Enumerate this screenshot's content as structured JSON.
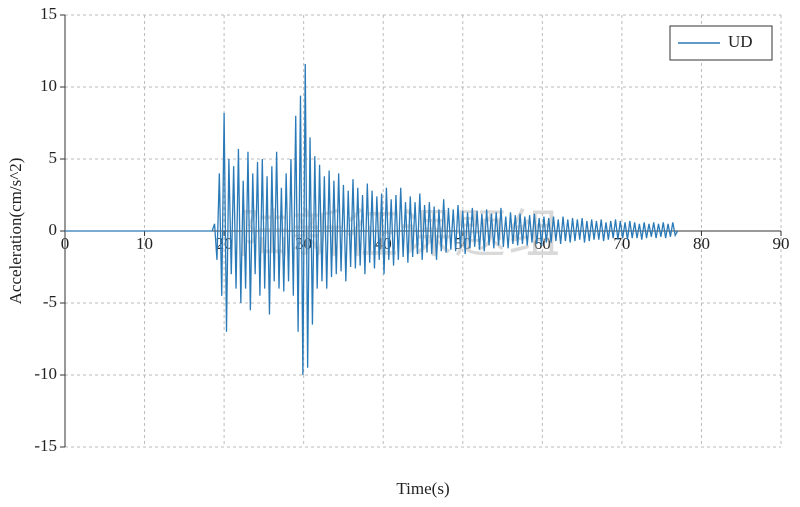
{
  "chart_data": {
    "type": "line",
    "xlabel": "Time(s)",
    "ylabel": "Acceleration(cm/s^2)",
    "watermark": "陆新征课题组",
    "xlim": [
      0,
      90
    ],
    "xticks": [
      0,
      10,
      20,
      30,
      40,
      50,
      60,
      70,
      80,
      90
    ],
    "ylim": [
      -15,
      15
    ],
    "yticks": [
      15,
      10,
      5,
      0,
      -5,
      -10,
      -15
    ],
    "grid": true,
    "legend": "upper right",
    "x": [
      0,
      18.5,
      18.8,
      19.1,
      19.4,
      19.7,
      20,
      20.3,
      20.6,
      20.9,
      21.2,
      21.5,
      21.8,
      22.1,
      22.4,
      22.7,
      23,
      23.3,
      23.6,
      23.9,
      24.2,
      24.5,
      24.8,
      25.1,
      25.4,
      25.7,
      26,
      26.3,
      26.6,
      26.9,
      27.2,
      27.5,
      27.8,
      28.1,
      28.4,
      28.7,
      29,
      29.3,
      29.6,
      29.9,
      30.2,
      30.5,
      30.8,
      31.1,
      31.4,
      31.7,
      32,
      32.3,
      32.6,
      32.9,
      33.2,
      33.5,
      33.8,
      34.1,
      34.4,
      34.7,
      35,
      35.3,
      35.6,
      35.9,
      36.2,
      36.5,
      36.8,
      37.1,
      37.4,
      37.7,
      38,
      38.3,
      38.6,
      38.9,
      39.2,
      39.5,
      39.8,
      40.1,
      40.4,
      40.7,
      41,
      41.3,
      41.6,
      41.9,
      42.2,
      42.5,
      42.8,
      43.1,
      43.4,
      43.7,
      44,
      44.3,
      44.6,
      44.9,
      45.2,
      45.5,
      45.8,
      46.1,
      46.4,
      46.7,
      47,
      47.3,
      47.6,
      47.9,
      48.2,
      48.5,
      48.8,
      49.1,
      49.4,
      49.7,
      50,
      50.3,
      50.6,
      50.9,
      51.2,
      51.5,
      51.8,
      52.1,
      52.4,
      52.7,
      53,
      53.3,
      53.6,
      53.9,
      54.2,
      54.5,
      54.8,
      55.1,
      55.4,
      55.7,
      56,
      56.3,
      56.6,
      56.9,
      57.2,
      57.5,
      57.8,
      58.1,
      58.4,
      58.7,
      59,
      59.3,
      59.6,
      59.9,
      60.2,
      60.5,
      60.8,
      61.1,
      61.4,
      61.7,
      62,
      62.3,
      62.6,
      62.9,
      63.2,
      63.5,
      63.8,
      64.1,
      64.4,
      64.7,
      65,
      65.3,
      65.6,
      65.9,
      66.2,
      66.5,
      66.8,
      67.1,
      67.4,
      67.7,
      68,
      68.3,
      68.6,
      68.9,
      69.2,
      69.5,
      69.8,
      70.1,
      70.4,
      70.7,
      71,
      71.3,
      71.6,
      71.9,
      72.2,
      72.5,
      72.8,
      73.1,
      73.4,
      73.7,
      74,
      74.3,
      74.6,
      74.9,
      75.2,
      75.5,
      75.8,
      76.1,
      76.4,
      76.7,
      77
    ],
    "series": [
      {
        "name": "UD",
        "color": "#2a7ab8",
        "values": [
          0,
          0,
          0.5,
          -2,
          4,
          -4.5,
          8.2,
          -7,
          5,
          -3,
          4.5,
          -4,
          5.7,
          -5,
          3.5,
          -4,
          5.5,
          -5.5,
          4,
          -3,
          4.8,
          -4.5,
          5,
          -4,
          3.8,
          -5.8,
          4.5,
          -3.5,
          5.5,
          -4,
          3,
          -4.2,
          4,
          -3.5,
          5,
          -4.5,
          8,
          -7,
          9.4,
          -10,
          11.6,
          -9.5,
          6.5,
          -6.5,
          5.2,
          -4,
          4.6,
          -3.5,
          3.8,
          -4,
          4.2,
          -3.2,
          3.5,
          -3,
          4,
          -2.8,
          3.2,
          -3.5,
          2.8,
          -2.5,
          3.6,
          -2.6,
          3,
          -2.4,
          2.5,
          -3,
          3.3,
          -2.2,
          2.8,
          -2.6,
          2.4,
          -2,
          2.6,
          -3,
          3,
          -2,
          2.2,
          -2.4,
          2.5,
          -2,
          3,
          -1.8,
          2,
          -2.2,
          2.4,
          -1.8,
          2,
          -1.6,
          2.6,
          -2,
          1.8,
          -1.5,
          2,
          -1.6,
          1.7,
          -2,
          1.5,
          -1.4,
          2.2,
          -1.5,
          1.6,
          -1.3,
          1.5,
          -1.4,
          1.8,
          -1.2,
          1.4,
          -1.6,
          1.3,
          -1.2,
          1.6,
          -1.1,
          1.4,
          -1.3,
          1.2,
          -1.4,
          1.5,
          -1,
          1.2,
          -1.2,
          1.3,
          -1,
          1.6,
          -1.1,
          1,
          -1.2,
          1.3,
          -0.9,
          1.1,
          -1,
          1.2,
          -0.9,
          1,
          -1,
          1.1,
          -0.8,
          1.2,
          -0.9,
          0.9,
          -1,
          1,
          -0.8,
          0.9,
          -0.8,
          1,
          -0.7,
          0.8,
          -0.9,
          1,
          -0.7,
          0.8,
          -0.8,
          0.9,
          -0.7,
          0.8,
          -0.6,
          0.9,
          -0.8,
          0.7,
          -0.7,
          0.8,
          -0.6,
          0.7,
          -0.6,
          0.8,
          -0.7,
          0.6,
          -0.6,
          0.7,
          -0.5,
          0.8,
          -0.6,
          0.7,
          -0.5,
          0.6,
          -0.6,
          0.7,
          -0.5,
          0.6,
          -0.5,
          0.5,
          -0.6,
          0.6,
          -0.5,
          0.5,
          -0.4,
          0.6,
          -0.5,
          0.5,
          -0.4,
          0.6,
          -0.5,
          0.5,
          -0.4,
          0.6,
          -0.3,
          0
        ]
      }
    ]
  }
}
